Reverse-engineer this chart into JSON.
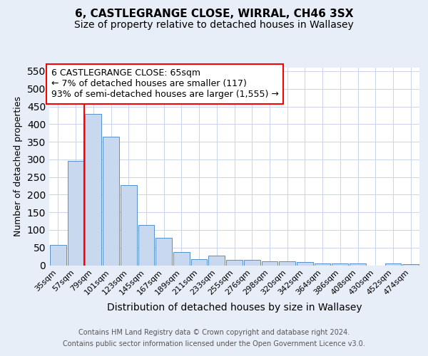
{
  "title": "6, CASTLEGRANGE CLOSE, WIRRAL, CH46 3SX",
  "subtitle": "Size of property relative to detached houses in Wallasey",
  "xlabel": "Distribution of detached houses by size in Wallasey",
  "ylabel": "Number of detached properties",
  "footnote1": "Contains HM Land Registry data © Crown copyright and database right 2024.",
  "footnote2": "Contains public sector information licensed under the Open Government Licence v3.0.",
  "categories": [
    "35sqm",
    "57sqm",
    "79sqm",
    "101sqm",
    "123sqm",
    "145sqm",
    "167sqm",
    "189sqm",
    "211sqm",
    "233sqm",
    "255sqm",
    "276sqm",
    "298sqm",
    "320sqm",
    "342sqm",
    "364sqm",
    "386sqm",
    "408sqm",
    "430sqm",
    "452sqm",
    "474sqm"
  ],
  "values": [
    57,
    295,
    428,
    365,
    228,
    114,
    77,
    38,
    18,
    27,
    16,
    16,
    11,
    11,
    9,
    5,
    5,
    5,
    0,
    5,
    4
  ],
  "bar_color": "#c8d8ee",
  "bar_edge_color": "#5590cc",
  "red_line_x": 1.5,
  "annotation_text": "6 CASTLEGRANGE CLOSE: 65sqm\n← 7% of detached houses are smaller (117)\n93% of semi-detached houses are larger (1,555) →",
  "ylim": [
    0,
    560
  ],
  "yticks": [
    0,
    50,
    100,
    150,
    200,
    250,
    300,
    350,
    400,
    450,
    500,
    550
  ],
  "background_color": "#e8eef8",
  "plot_bg_color": "white",
  "grid_color": "#c8d4e8",
  "title_fontsize": 11,
  "subtitle_fontsize": 10,
  "xlabel_fontsize": 10,
  "ylabel_fontsize": 9,
  "tick_fontsize": 8,
  "annotation_fontsize": 9
}
